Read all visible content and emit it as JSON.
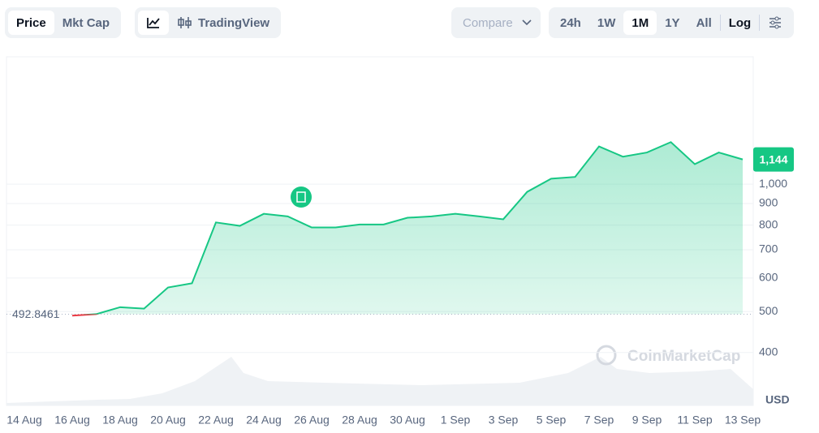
{
  "toolbar": {
    "left": [
      "Price",
      "Mkt Cap"
    ],
    "view": [
      "TradingView"
    ],
    "compare": "Compare",
    "ranges": [
      "24h",
      "1W",
      "1M",
      "1Y",
      "All"
    ],
    "scale": "Log"
  },
  "chart_data": {
    "type": "line",
    "log_scale": true,
    "grid": true,
    "color": "#16c784",
    "down_color": "#ea3943",
    "categories": [
      "14 Aug",
      null,
      "16 Aug",
      null,
      "18 Aug",
      null,
      "20 Aug",
      null,
      "22 Aug",
      null,
      "24 Aug",
      null,
      "26 Aug",
      null,
      "28 Aug",
      null,
      "30 Aug",
      null,
      "1 Sep",
      null,
      "3 Sep",
      null,
      "5 Sep",
      null,
      "7 Sep",
      null,
      "9 Sep",
      null,
      "11 Sep",
      null,
      "13 Sep"
    ],
    "values": [
      null,
      null,
      489,
      493,
      512,
      508,
      570,
      583,
      812,
      797,
      851,
      839,
      790,
      790,
      803,
      803,
      833,
      839,
      851,
      839,
      826,
      959,
      1030,
      1040,
      1228,
      1161,
      1188,
      1257,
      1115,
      1188,
      1144
    ],
    "baseline": 492.8461,
    "last_price": {
      "value": 1144,
      "label": "1,144"
    },
    "ylim": [
      300,
      2000
    ],
    "yticks": [
      400,
      500,
      600,
      700,
      800,
      900,
      {
        "value": 1000,
        "label": "1,000"
      }
    ],
    "y_unit": "USD",
    "watermark": "CoinMarketCap"
  }
}
